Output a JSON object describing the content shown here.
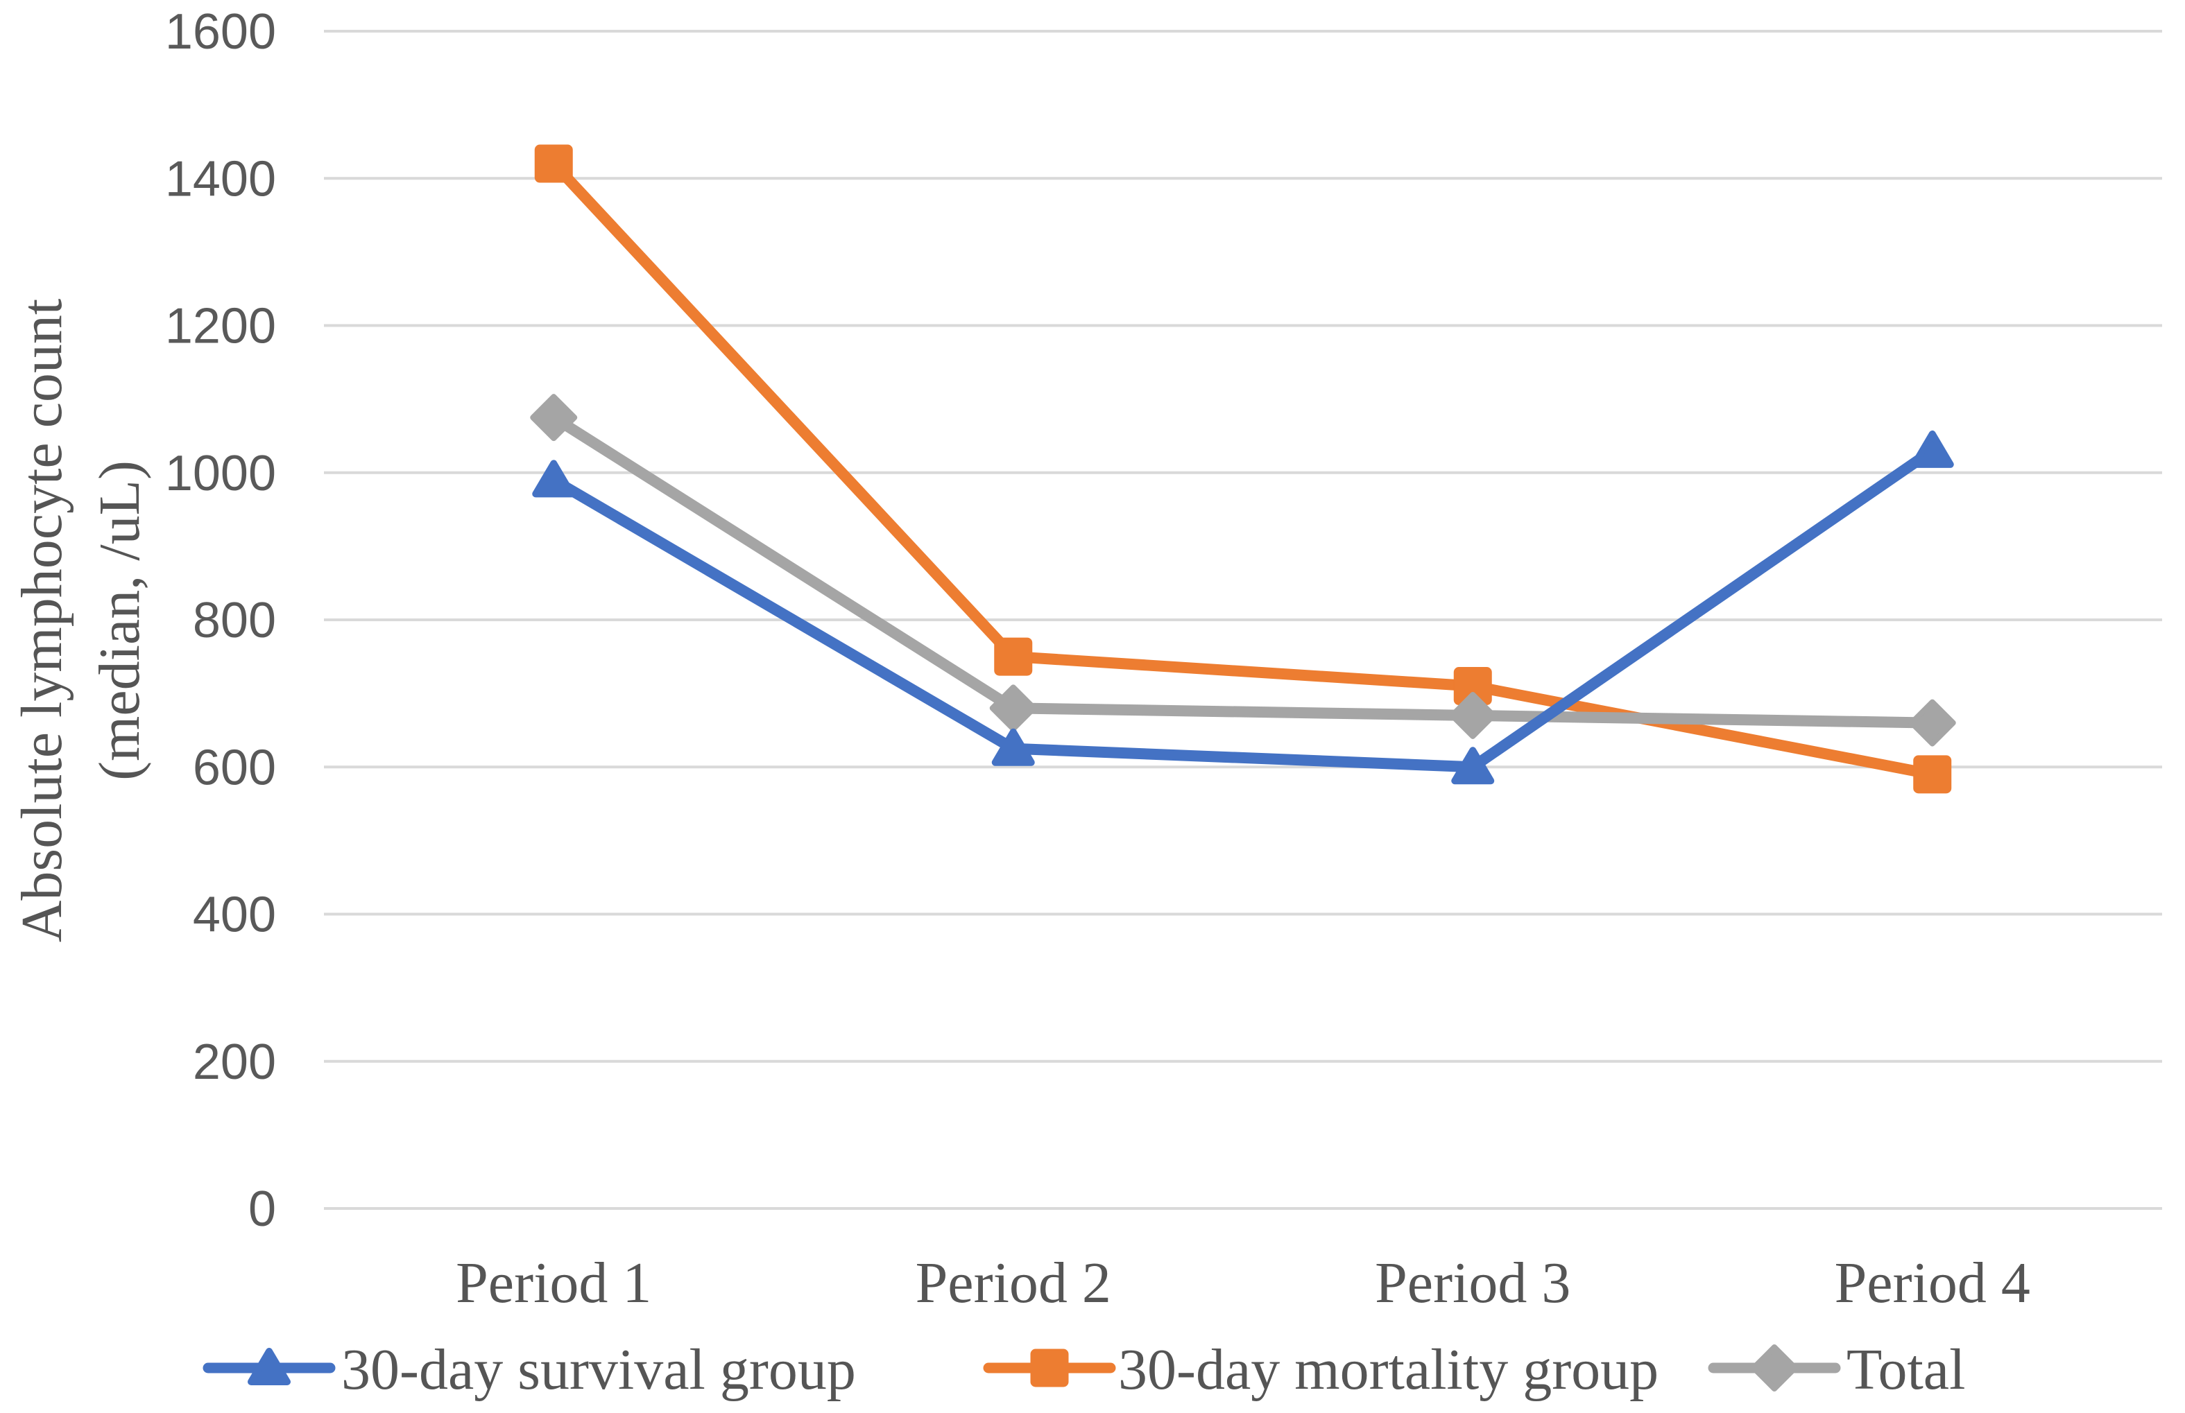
{
  "figure": {
    "kind": "published-journal-line-chart",
    "background": "#ffffff"
  },
  "y_axis": {
    "title_line1": "Absolute lymphocyte count",
    "title_line2": "(median, /uL)",
    "tick_labels": [
      "0",
      "200",
      "400",
      "600",
      "800",
      "1000",
      "1200",
      "1400",
      "1600"
    ],
    "tick_values": [
      0,
      200,
      400,
      600,
      800,
      1000,
      1200,
      1400,
      1600
    ]
  },
  "x_axis": {
    "categories": [
      "Period 1",
      "Period 2",
      "Period 3",
      "Period 4"
    ]
  },
  "legend": {
    "position": "bottom",
    "items": [
      {
        "label": "30-day survival group",
        "marker": "triangle",
        "color": "#4472C4"
      },
      {
        "label": "30-day mortality group",
        "marker": "square",
        "color": "#ED7D31"
      },
      {
        "label": "Total",
        "marker": "diamond",
        "color": "#A5A5A5"
      }
    ]
  },
  "colors": {
    "survival_blue": "#4472C4",
    "mortality_orange": "#ED7D31",
    "total_gray": "#A5A5A5",
    "gridline": "#D9D9D9",
    "tick_text": "#595959",
    "label_text": "#555555"
  },
  "chart_data": {
    "type": "line",
    "categories": [
      "Period 1",
      "Period 2",
      "Period 3",
      "Period 4"
    ],
    "series": [
      {
        "name": "30-day survival group",
        "color": "#4472C4",
        "marker": "triangle",
        "values": [
          990,
          625,
          600,
          1030
        ]
      },
      {
        "name": "30-day mortality group",
        "color": "#ED7D31",
        "marker": "square",
        "values": [
          1420,
          750,
          710,
          590
        ]
      },
      {
        "name": "Total",
        "color": "#A5A5A5",
        "marker": "diamond",
        "values": [
          1075,
          680,
          670,
          660
        ]
      }
    ],
    "title": "",
    "xlabel": "",
    "ylabel": "Absolute lymphocyte count (median, /uL)",
    "ylim": [
      0,
      1600
    ],
    "ytick_step": 200,
    "grid": "horizontal-only",
    "legend_position": "bottom",
    "draw_order_top_to_bottom": [
      "30-day survival group",
      "Total",
      "30-day mortality group"
    ]
  }
}
